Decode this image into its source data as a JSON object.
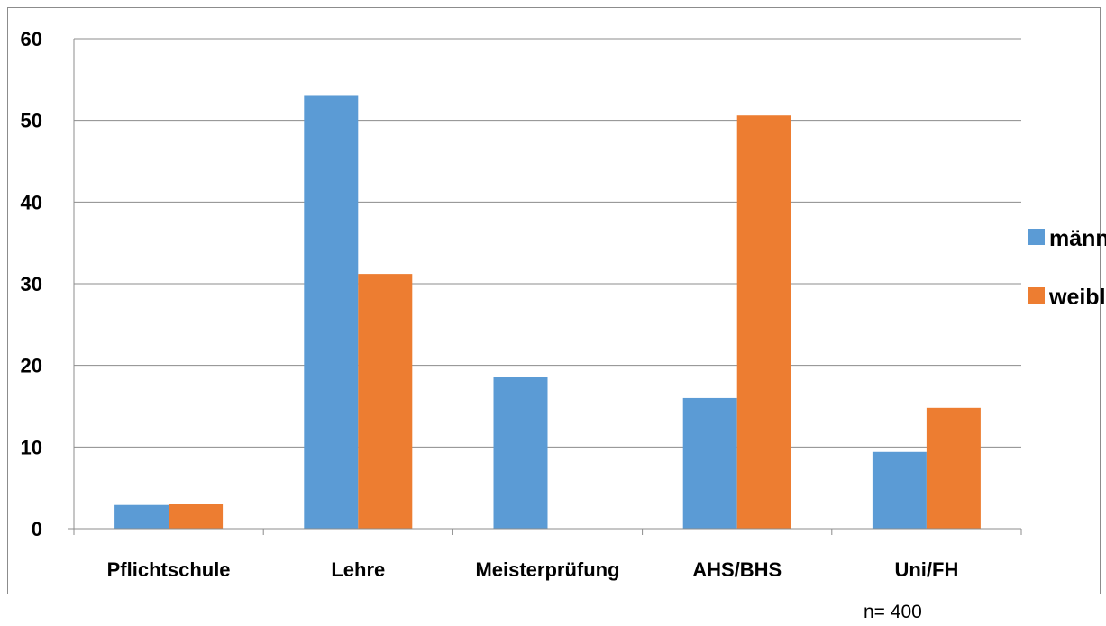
{
  "chart_data": {
    "type": "bar",
    "title": "",
    "xlabel": "",
    "ylabel": "",
    "categories": [
      "Pflichtschule",
      "Lehre",
      "Meisterprüfung",
      "AHS/BHS",
      "Uni/FH"
    ],
    "series": [
      {
        "name": "männlich",
        "color": "#5b9bd5",
        "values": [
          2.9,
          53.0,
          18.6,
          16.0,
          9.4
        ]
      },
      {
        "name": "weiblich",
        "color": "#ed7d31",
        "values": [
          3.0,
          31.2,
          0,
          50.6,
          14.8
        ]
      }
    ],
    "ylim": [
      0,
      60
    ],
    "yticks": [
      "0",
      "10",
      "20",
      "30",
      "40",
      "50",
      "60"
    ],
    "grid": true,
    "legend_position": "right"
  },
  "note": "n= 400"
}
